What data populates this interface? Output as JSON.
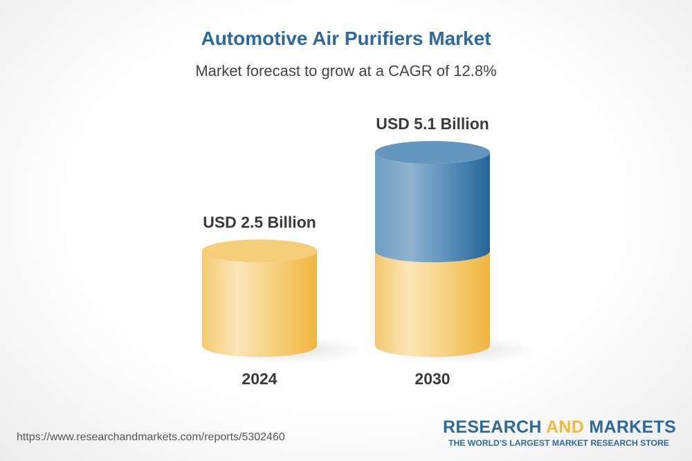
{
  "chart_data": {
    "type": "bar",
    "style": "3d-cylinder",
    "title": "Automotive Air Purifiers Market",
    "subtitle": "Market forecast to grow at a CAGR of 12.8%",
    "categories": [
      "2024",
      "2030"
    ],
    "values": [
      2.5,
      5.1
    ],
    "unit": "USD Billion",
    "data_labels": [
      "USD 2.5 Billion",
      "USD 5.1 Billion"
    ],
    "colors": {
      "base": "#f2b938",
      "growth": "#2a6aa0"
    },
    "grid": false
  },
  "footer": {
    "url": "https://www.researchandmarkets.com/reports/5302460",
    "logo_part1": "RESEARCH ",
    "logo_part2": "AND",
    "logo_part3": " MARKETS",
    "tagline": "THE WORLD'S LARGEST MARKET RESEARCH STORE"
  }
}
